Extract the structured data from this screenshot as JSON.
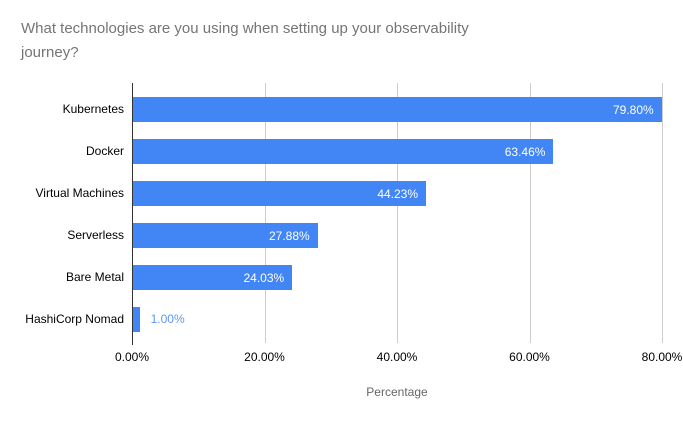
{
  "chart_data": {
    "type": "bar",
    "orientation": "horizontal",
    "title": "What technologies are you using when setting up your observability journey?",
    "categories": [
      "Kubernetes",
      "Docker",
      "Virtual Machines",
      "Serverless",
      "Bare Metal",
      "HashiCorp Nomad"
    ],
    "values": [
      79.8,
      63.46,
      44.23,
      27.88,
      24.03,
      1.0
    ],
    "value_labels": [
      "79.80%",
      "63.46%",
      "44.23%",
      "27.88%",
      "24.03%",
      "1.00%"
    ],
    "xlabel": "Percentage",
    "x_ticks": [
      {
        "value": 0,
        "label": "0.00%"
      },
      {
        "value": 20,
        "label": "20.00%"
      },
      {
        "value": 40,
        "label": "40.00%"
      },
      {
        "value": 60,
        "label": "60.00%"
      },
      {
        "value": 80,
        "label": "80.00%"
      }
    ],
    "xlim": [
      0,
      80
    ],
    "grid": true,
    "legend_position": "none",
    "colors": {
      "bar": "#4285f4",
      "inside_label": "#ffffff",
      "outside_label": "#5e97f6",
      "gridline": "#cccccc",
      "axis_line": "#333333",
      "title_text": "#757575",
      "tick_text": "#000000",
      "axis_title_text": "#666666",
      "background": "#ffffff"
    }
  }
}
